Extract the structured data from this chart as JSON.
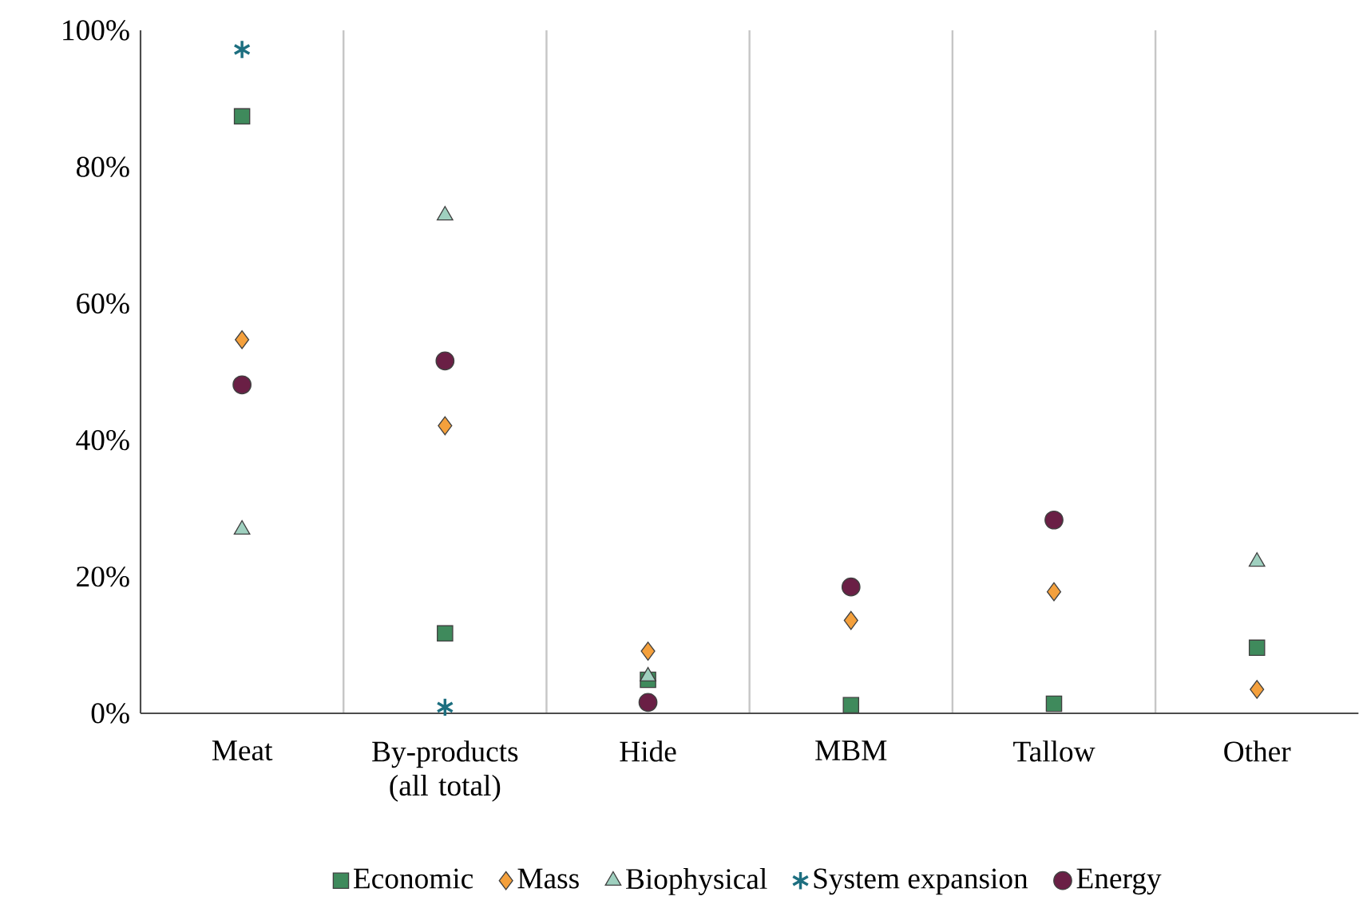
{
  "chart_data": {
    "type": "scatter",
    "categories": [
      "Meat",
      "By-products (all total)",
      "Hide",
      "MBM",
      "Tallow",
      "Other"
    ],
    "series": [
      {
        "name": "Economic",
        "color": "#3f8a5c",
        "marker": "square",
        "values": [
          87.4,
          11.7,
          4.9,
          1.2,
          1.4,
          9.6
        ]
      },
      {
        "name": "Mass",
        "color": "#f4a03c",
        "marker": "diamond",
        "values": [
          54.7,
          42.1,
          9.1,
          13.6,
          17.8,
          3.5
        ]
      },
      {
        "name": "Biophysical",
        "color": "#9fd0bf",
        "marker": "triangle",
        "values": [
          26.9,
          72.9,
          5.4,
          null,
          null,
          22.2
        ]
      },
      {
        "name": "System expansion",
        "color": "#1d6f80",
        "marker": "cross",
        "values": [
          97.2,
          0.9,
          null,
          null,
          null,
          null
        ]
      },
      {
        "name": "Energy",
        "color": "#6a1f45",
        "marker": "circle",
        "values": [
          48.1,
          51.6,
          1.6,
          18.5,
          28.3,
          null
        ]
      }
    ],
    "ylim": [
      0,
      100
    ],
    "yticks": [
      {
        "value": 0,
        "label": "0%"
      },
      {
        "value": 20,
        "label": "20%"
      },
      {
        "value": 40,
        "label": "40%"
      },
      {
        "value": 60,
        "label": "60%"
      },
      {
        "value": 80,
        "label": "80%"
      },
      {
        "value": 100,
        "label": "100%"
      }
    ],
    "grid": "x",
    "legend": "bottom"
  }
}
